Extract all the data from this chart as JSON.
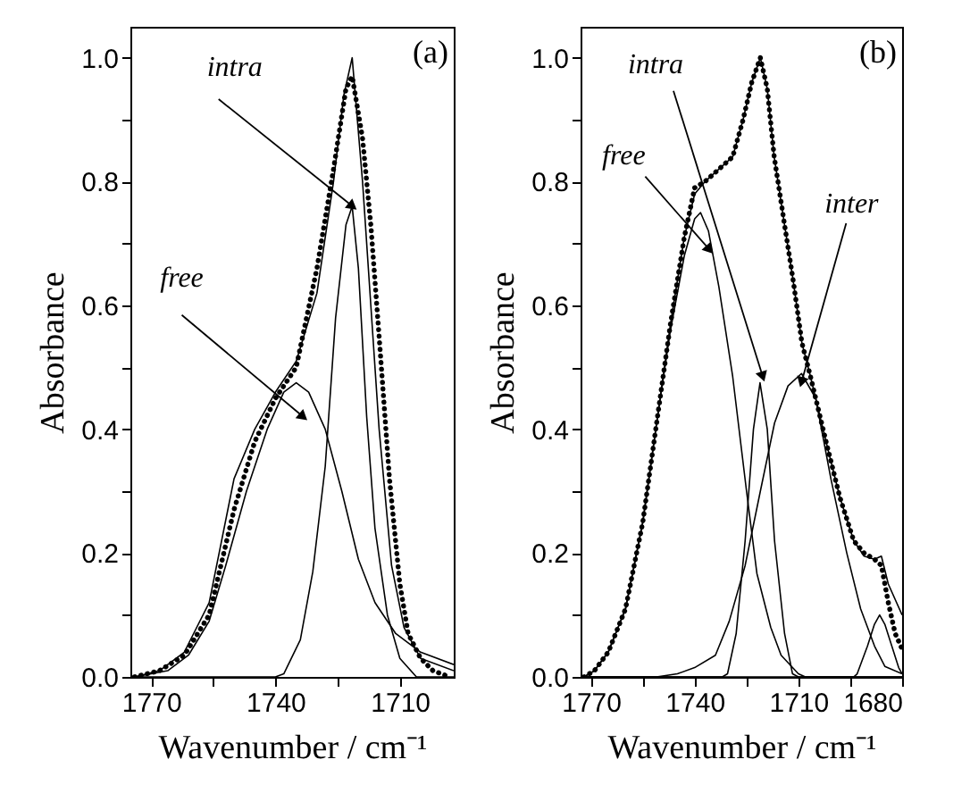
{
  "chart_data": [
    {
      "type": "line",
      "xlabel": "Wavenumber / cm⁻¹",
      "ylabel": "Absorbance",
      "xlim": [
        1775,
        1697
      ],
      "ylim": [
        0,
        1.05
      ],
      "xticks": [
        1770,
        {
          "value": 1755,
          "label": null
        },
        1740,
        {
          "value": 1725,
          "label": null
        },
        1710
      ],
      "yticks": [
        {
          "value": 0,
          "label": "0.0"
        },
        {
          "value": 0.1,
          "label": null
        },
        {
          "value": 0.2,
          "label": "0.2"
        },
        {
          "value": 0.3,
          "label": null
        },
        {
          "value": 0.4,
          "label": "0.4"
        },
        {
          "value": 0.5,
          "label": null
        },
        {
          "value": 0.6,
          "label": "0.6"
        },
        {
          "value": 0.7,
          "label": null
        },
        {
          "value": 0.8,
          "label": "0.8"
        },
        {
          "value": 0.9,
          "label": null
        },
        {
          "value": 1,
          "label": "1.0"
        }
      ],
      "annotations": [
        {
          "text": "intra",
          "x": 1721.4,
          "y": 0.76
        },
        {
          "text": "free",
          "x": 1733.3,
          "y": 0.42
        },
        "(a)"
      ],
      "series": [
        {
          "color": "#000000",
          "line_style": "solid",
          "x": [
            1774,
            1768,
            1762,
            1756,
            1750,
            1745,
            1740,
            1735,
            1730,
            1726,
            1723.5,
            1721.5,
            1719,
            1717,
            1715,
            1712,
            1709,
            1705,
            1697
          ],
          "values": [
            0,
            0.01,
            0.04,
            0.12,
            0.32,
            0.4,
            0.46,
            0.51,
            0.62,
            0.8,
            0.94,
            1.0,
            0.8,
            0.6,
            0.4,
            0.18,
            0.08,
            0.03,
            0.01
          ]
        },
        {
          "color": "#000000",
          "line_style": "dotted",
          "x": [
            1774,
            1768,
            1762,
            1756,
            1750,
            1745,
            1740,
            1735,
            1730,
            1726,
            1723,
            1721.5,
            1719,
            1717,
            1715,
            1712.5,
            1710,
            1708,
            1705,
            1702,
            1698
          ],
          "values": [
            0,
            0.01,
            0.035,
            0.1,
            0.27,
            0.38,
            0.45,
            0.5,
            0.66,
            0.82,
            0.95,
            0.97,
            0.87,
            0.73,
            0.55,
            0.32,
            0.15,
            0.07,
            0.03,
            0.01,
            0
          ]
        },
        {
          "color": "#000000",
          "line_style": "solid",
          "x": [
            1774,
            1766,
            1761,
            1756,
            1752,
            1747,
            1742,
            1738,
            1735,
            1732,
            1728,
            1724,
            1720,
            1716,
            1711,
            1705,
            1697
          ],
          "values": [
            0,
            0.01,
            0.035,
            0.09,
            0.18,
            0.3,
            0.4,
            0.46,
            0.475,
            0.46,
            0.4,
            0.3,
            0.19,
            0.12,
            0.07,
            0.04,
            0.02
          ]
        },
        {
          "color": "#000000",
          "line_style": "solid",
          "x": [
            1774,
            1740,
            1738,
            1734,
            1731,
            1728,
            1725.5,
            1723,
            1721.5,
            1720,
            1718,
            1716,
            1713,
            1710,
            1706,
            1697
          ],
          "values": [
            0,
            0,
            0.005,
            0.06,
            0.17,
            0.34,
            0.58,
            0.73,
            0.76,
            0.66,
            0.42,
            0.24,
            0.1,
            0.03,
            0,
            0
          ]
        }
      ]
    },
    {
      "type": "line",
      "xlabel": "Wavenumber / cm⁻¹",
      "ylabel": "Absorbance",
      "xlim": [
        1773,
        1680
      ],
      "ylim": [
        0,
        1.05
      ],
      "xticks": [
        1770,
        {
          "value": 1755,
          "label": null
        },
        1740,
        {
          "value": 1725,
          "label": null
        },
        1710,
        {
          "value": 1695,
          "label": null
        },
        1680
      ],
      "yticks": [
        {
          "value": 0,
          "label": "0.0"
        },
        {
          "value": 0.1,
          "label": null
        },
        {
          "value": 0.2,
          "label": "0.2"
        },
        {
          "value": 0.3,
          "label": null
        },
        {
          "value": 0.4,
          "label": "0.4"
        },
        {
          "value": 0.5,
          "label": null
        },
        {
          "value": 0.6,
          "label": "0.6"
        },
        {
          "value": 0.7,
          "label": null
        },
        {
          "value": 0.8,
          "label": "0.8"
        },
        {
          "value": 0.9,
          "label": null
        },
        {
          "value": 1,
          "label": "1.0"
        }
      ],
      "annotations": [
        {
          "text": "intra",
          "x": 1720.3,
          "y": 0.485
        },
        {
          "text": "free",
          "x": 1735.7,
          "y": 0.69
        },
        {
          "text": "inter",
          "x": 1709.1,
          "y": 0.476
        },
        "(b)"
      ],
      "series": [
        {
          "color": "#000000",
          "line_style": "solid",
          "x": [
            1772,
            1769,
            1765,
            1760,
            1755,
            1751,
            1747,
            1743,
            1740,
            1737,
            1733,
            1729,
            1726,
            1723.5,
            1721,
            1719,
            1717,
            1714,
            1711.5,
            1709,
            1706.5,
            1702,
            1698,
            1694,
            1691,
            1688,
            1686,
            1684,
            1680
          ],
          "values": [
            0,
            0.01,
            0.04,
            0.11,
            0.25,
            0.41,
            0.57,
            0.71,
            0.78,
            0.8,
            0.82,
            0.84,
            0.9,
            0.96,
            1.0,
            0.95,
            0.84,
            0.73,
            0.64,
            0.54,
            0.485,
            0.38,
            0.29,
            0.22,
            0.195,
            0.19,
            0.195,
            0.15,
            0.1
          ]
        },
        {
          "color": "#000000",
          "line_style": "dotted",
          "x": [
            1772,
            1769,
            1765,
            1760,
            1755,
            1751,
            1747,
            1743,
            1740,
            1737,
            1733,
            1729,
            1726,
            1723.5,
            1721,
            1719,
            1717,
            1714,
            1711.5,
            1709,
            1706.5,
            1702,
            1698,
            1694,
            1691,
            1688,
            1686,
            1684,
            1682,
            1680
          ],
          "values": [
            0,
            0.01,
            0.04,
            0.11,
            0.25,
            0.41,
            0.57,
            0.71,
            0.79,
            0.8,
            0.82,
            0.84,
            0.9,
            0.96,
            1.0,
            0.95,
            0.84,
            0.73,
            0.64,
            0.54,
            0.485,
            0.38,
            0.29,
            0.22,
            0.2,
            0.19,
            0.18,
            0.12,
            0.07,
            0.045
          ]
        },
        {
          "color": "#000000",
          "line_style": "solid",
          "x": [
            1772,
            1769,
            1765,
            1760,
            1755,
            1751,
            1747,
            1743,
            1740,
            1738.3,
            1736,
            1733,
            1729,
            1725,
            1722,
            1718,
            1715,
            1710,
            1708,
            1680
          ],
          "values": [
            0,
            0.01,
            0.04,
            0.11,
            0.25,
            0.41,
            0.56,
            0.68,
            0.74,
            0.75,
            0.72,
            0.63,
            0.485,
            0.3,
            0.167,
            0.08,
            0.035,
            0.005,
            0,
            0
          ]
        },
        {
          "color": "#000000",
          "line_style": "solid",
          "x": [
            1772,
            1732,
            1730.5,
            1728,
            1725.4,
            1723,
            1721.1,
            1719,
            1716.9,
            1714,
            1711.7,
            1710,
            1680
          ],
          "values": [
            0,
            0,
            0.005,
            0.07,
            0.22,
            0.4,
            0.475,
            0.4,
            0.22,
            0.07,
            0.005,
            0,
            0
          ]
        },
        {
          "color": "#000000",
          "line_style": "solid",
          "x": [
            1772,
            1751,
            1745,
            1740,
            1734,
            1730,
            1725.4,
            1721,
            1716.9,
            1713,
            1709.1,
            1705,
            1700.6,
            1696,
            1692,
            1688,
            1685,
            1680
          ],
          "values": [
            0,
            0,
            0.005,
            0.015,
            0.035,
            0.09,
            0.18,
            0.3,
            0.41,
            0.47,
            0.49,
            0.45,
            0.32,
            0.2,
            0.11,
            0.05,
            0.017,
            0.005
          ]
        },
        {
          "color": "#000000",
          "line_style": "solid",
          "x": [
            1772,
            1694,
            1693,
            1690,
            1688,
            1686.5,
            1685,
            1683,
            1681,
            1680
          ],
          "values": [
            0,
            0,
            0.005,
            0.05,
            0.085,
            0.1,
            0.085,
            0.05,
            0.015,
            0.005
          ]
        }
      ]
    }
  ]
}
